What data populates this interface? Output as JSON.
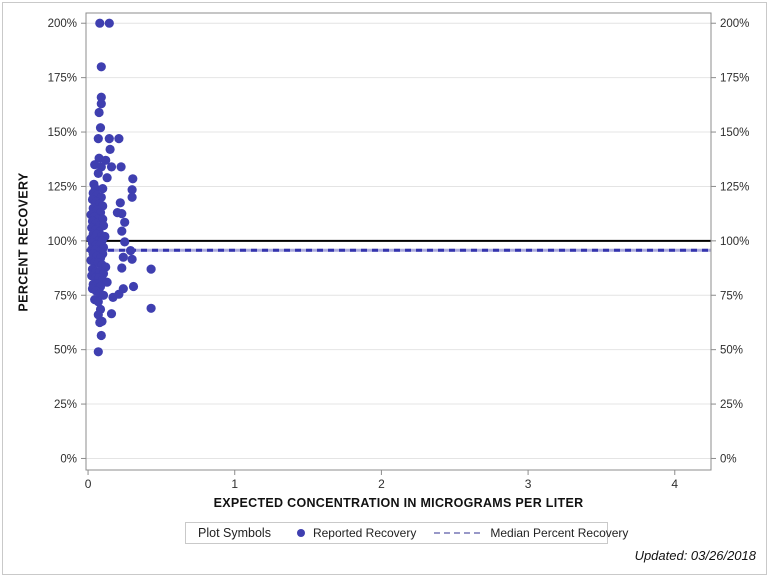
{
  "figure": {
    "y_axis_title": "PERCENT RECOVERY",
    "x_axis_title": "EXPECTED CONCENTRATION IN MICROGRAMS PER LITER",
    "updated_note": "Updated: 03/26/2018"
  },
  "legend": {
    "title": "Plot Symbols",
    "items": [
      {
        "label": "Reported Recovery",
        "symbol": "dot",
        "color": "#3f3fb0"
      },
      {
        "label": "Median Percent Recovery",
        "symbol": "dashed-line",
        "color": "#9898c8"
      }
    ]
  },
  "colors": {
    "marker": "#3f3fb0",
    "reference_solid": "#000000",
    "median_dash": "#3434ad",
    "median_dash_gap": "#ababdd",
    "gridline": "#e4e4e4",
    "axis_frame": "#8c8c8c",
    "tick_label": "#2e2e2e"
  },
  "chart_data": {
    "type": "scatter",
    "title": "",
    "xlabel": "EXPECTED CONCENTRATION IN MICROGRAMS PER LITER",
    "ylabel": "PERCENT RECOVERY",
    "grid": "horizontal-only",
    "legend_position": "bottom",
    "x_axis": {
      "min": -0.014,
      "max": 4.247,
      "ticks": [
        0,
        1,
        2,
        3,
        4
      ],
      "tick_labels": [
        "0",
        "1",
        "2",
        "3",
        "4"
      ]
    },
    "y_axis": {
      "min": -5.3,
      "max": 204.7,
      "ticks": [
        0,
        25,
        50,
        75,
        100,
        125,
        150,
        175,
        200
      ],
      "tick_labels": [
        "0%",
        "25%",
        "50%",
        "75%",
        "100%",
        "125%",
        "150%",
        "175%",
        "200%"
      ],
      "mirrored_right": true
    },
    "reference_lines": [
      {
        "name": "solid-100-line",
        "value": 100,
        "style": "solid",
        "color": "#000000",
        "width": 2
      },
      {
        "name": "median-percent-recovery",
        "value": 95.7,
        "style": "dashed",
        "color": "#3434ad",
        "width": 3
      }
    ],
    "series": [
      {
        "name": "Reported Recovery",
        "marker": "filled-circle",
        "marker_radius": 4.6,
        "points": [
          [
            0.08,
            200
          ],
          [
            0.145,
            200
          ],
          [
            0.09,
            180
          ],
          [
            0.09,
            166
          ],
          [
            0.09,
            163
          ],
          [
            0.075,
            159
          ],
          [
            0.085,
            152
          ],
          [
            0.07,
            147
          ],
          [
            0.145,
            147
          ],
          [
            0.21,
            147
          ],
          [
            0.15,
            142
          ],
          [
            0.075,
            138
          ],
          [
            0.12,
            137
          ],
          [
            0.045,
            135
          ],
          [
            0.09,
            134
          ],
          [
            0.16,
            134
          ],
          [
            0.225,
            134
          ],
          [
            0.07,
            131
          ],
          [
            0.13,
            129
          ],
          [
            0.305,
            128.5
          ],
          [
            0.04,
            126
          ],
          [
            0.05,
            124
          ],
          [
            0.1,
            124
          ],
          [
            0.3,
            123.5
          ],
          [
            0.035,
            122
          ],
          [
            0.06,
            121
          ],
          [
            0.09,
            120
          ],
          [
            0.3,
            120
          ],
          [
            0.03,
            119
          ],
          [
            0.055,
            118
          ],
          [
            0.08,
            117
          ],
          [
            0.22,
            117.5
          ],
          [
            0.1,
            116
          ],
          [
            0.035,
            115
          ],
          [
            0.06,
            114
          ],
          [
            0.085,
            113
          ],
          [
            0.23,
            112.5
          ],
          [
            0.2,
            113
          ],
          [
            0.02,
            112
          ],
          [
            0.045,
            111
          ],
          [
            0.07,
            110
          ],
          [
            0.1,
            110
          ],
          [
            0.25,
            108.5
          ],
          [
            0.03,
            109
          ],
          [
            0.055,
            108
          ],
          [
            0.08,
            107
          ],
          [
            0.105,
            107
          ],
          [
            0.025,
            106
          ],
          [
            0.05,
            105
          ],
          [
            0.075,
            104
          ],
          [
            0.23,
            104.5
          ],
          [
            0.035,
            103
          ],
          [
            0.06,
            103
          ],
          [
            0.09,
            102
          ],
          [
            0.115,
            102
          ],
          [
            0.02,
            101
          ],
          [
            0.045,
            101
          ],
          [
            0.07,
            100
          ],
          [
            0.095,
            100
          ],
          [
            0.25,
            99.5
          ],
          [
            0.03,
            99
          ],
          [
            0.055,
            98
          ],
          [
            0.08,
            98
          ],
          [
            0.105,
            97
          ],
          [
            0.025,
            96
          ],
          [
            0.05,
            96
          ],
          [
            0.075,
            95
          ],
          [
            0.29,
            95.5
          ],
          [
            0.1,
            94
          ],
          [
            0.035,
            94
          ],
          [
            0.06,
            93
          ],
          [
            0.085,
            92
          ],
          [
            0.24,
            92.5
          ],
          [
            0.3,
            91.5
          ],
          [
            0.02,
            91
          ],
          [
            0.045,
            90
          ],
          [
            0.07,
            90
          ],
          [
            0.095,
            89
          ],
          [
            0.12,
            88
          ],
          [
            0.23,
            87.5
          ],
          [
            0.43,
            87
          ],
          [
            0.03,
            87
          ],
          [
            0.055,
            86
          ],
          [
            0.08,
            86
          ],
          [
            0.105,
            85
          ],
          [
            0.025,
            84
          ],
          [
            0.05,
            83
          ],
          [
            0.075,
            83
          ],
          [
            0.1,
            82
          ],
          [
            0.13,
            81
          ],
          [
            0.035,
            80
          ],
          [
            0.06,
            80
          ],
          [
            0.085,
            79
          ],
          [
            0.31,
            79
          ],
          [
            0.24,
            78
          ],
          [
            0.03,
            78
          ],
          [
            0.055,
            77
          ],
          [
            0.08,
            76
          ],
          [
            0.105,
            75
          ],
          [
            0.17,
            74
          ],
          [
            0.21,
            75.5
          ],
          [
            0.045,
            73
          ],
          [
            0.07,
            72
          ],
          [
            0.085,
            68.5
          ],
          [
            0.43,
            69
          ],
          [
            0.16,
            66.5
          ],
          [
            0.07,
            66
          ],
          [
            0.095,
            63
          ],
          [
            0.08,
            62.5
          ],
          [
            0.09,
            56.5
          ],
          [
            0.07,
            49
          ]
        ]
      }
    ]
  }
}
